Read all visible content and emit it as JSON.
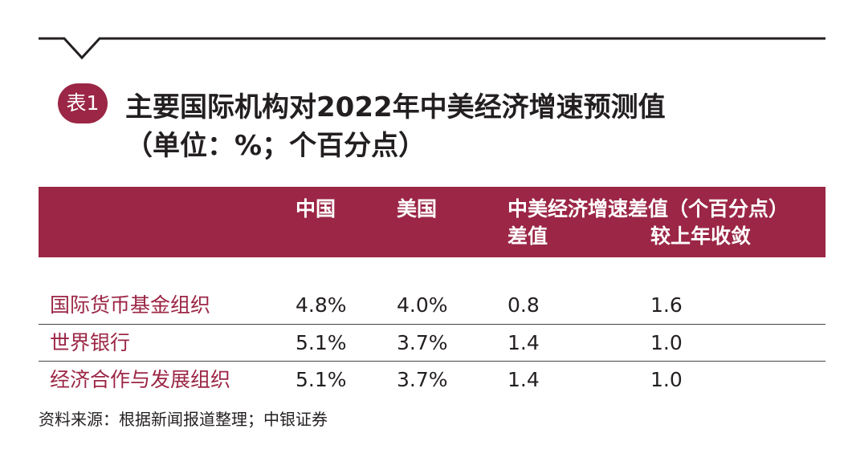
{
  "table": {
    "badge": "表1",
    "title_line1": "主要国际机构对2022年中美经济增速预测值",
    "title_line2": "（单位：%；个百分点）",
    "columns": {
      "china": "中国",
      "usa": "美国",
      "group": "中美经济增速差值（个百分点）",
      "diff": "差值",
      "convergence": "较上年收敛"
    },
    "rows": [
      {
        "org": "国际货币基金组织",
        "china": "4.8%",
        "usa": "4.0%",
        "diff": "0.8",
        "convergence": "1.6"
      },
      {
        "org": "世界银行",
        "china": "5.1%",
        "usa": "3.7%",
        "diff": "1.4",
        "convergence": "1.0"
      },
      {
        "org": "经济合作与发展组织",
        "china": "5.1%",
        "usa": "3.7%",
        "diff": "1.4",
        "convergence": "1.0"
      }
    ],
    "source": "资料来源：根据新闻报道整理；中银证券"
  },
  "colors": {
    "accent": "#9b2645",
    "text": "#231f20",
    "background": "#ffffff"
  }
}
